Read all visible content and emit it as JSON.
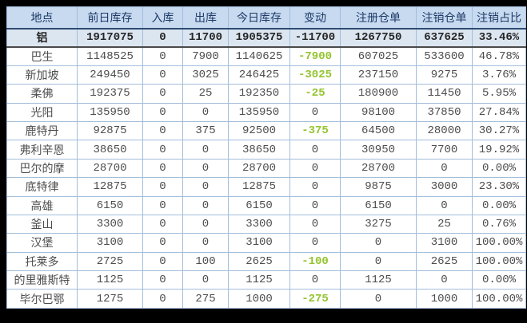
{
  "colors": {
    "frame": "#000000",
    "header_bg": "#C7DAF0",
    "header_text": "#1E3A66",
    "summary_bg": "#DCE6F1",
    "summary_text": "#262626",
    "body_bg": "#FFFFFF",
    "body_text": "#4D4D4D",
    "negative": "#94C42E",
    "grid": "#A2BDDB",
    "header_divider": "#2E4A73",
    "summary_divider": "#4A4A4A"
  },
  "chart_data": {
    "type": "table",
    "columns": [
      "地点",
      "前日库存",
      "入库",
      "出库",
      "今日库存",
      "变动",
      "注册仓单",
      "注销仓单",
      "注销占比"
    ],
    "summary_row": [
      "铝",
      "1917075",
      "0",
      "11700",
      "1905375",
      "-11700",
      "1267750",
      "637625",
      "33.46%"
    ],
    "rows": [
      [
        "巴生",
        "1148525",
        "0",
        "7900",
        "1140625",
        "-7900",
        "607025",
        "533600",
        "46.78%"
      ],
      [
        "新加坡",
        "249450",
        "0",
        "3025",
        "246425",
        "-3025",
        "237150",
        "9275",
        "3.76%"
      ],
      [
        "柔佛",
        "192375",
        "0",
        "25",
        "192350",
        "-25",
        "180900",
        "11450",
        "5.95%"
      ],
      [
        "光阳",
        "135950",
        "0",
        "0",
        "135950",
        "0",
        "98100",
        "37850",
        "27.84%"
      ],
      [
        "鹿特丹",
        "92875",
        "0",
        "375",
        "92500",
        "-375",
        "64500",
        "28000",
        "30.27%"
      ],
      [
        "弗利辛恩",
        "38650",
        "0",
        "0",
        "38650",
        "0",
        "30950",
        "7700",
        "19.92%"
      ],
      [
        "巴尔的摩",
        "28700",
        "0",
        "0",
        "28700",
        "0",
        "28700",
        "0",
        "0.00%"
      ],
      [
        "底特律",
        "12875",
        "0",
        "0",
        "12875",
        "0",
        "9875",
        "3000",
        "23.30%"
      ],
      [
        "高雄",
        "6150",
        "0",
        "0",
        "6150",
        "0",
        "6150",
        "0",
        "0.00%"
      ],
      [
        "釜山",
        "3300",
        "0",
        "0",
        "3300",
        "0",
        "3275",
        "25",
        "0.76%"
      ],
      [
        "汉堡",
        "3100",
        "0",
        "0",
        "3100",
        "0",
        "0",
        "3100",
        "100.00%"
      ],
      [
        "托莱多",
        "2725",
        "0",
        "100",
        "2625",
        "-100",
        "0",
        "2625",
        "100.00%"
      ],
      [
        "的里雅斯特",
        "1125",
        "0",
        "0",
        "1125",
        "0",
        "1125",
        "0",
        "0.00%"
      ],
      [
        "毕尔巴鄂",
        "1275",
        "0",
        "275",
        "1000",
        "-275",
        "0",
        "1000",
        "100.00%"
      ]
    ]
  }
}
